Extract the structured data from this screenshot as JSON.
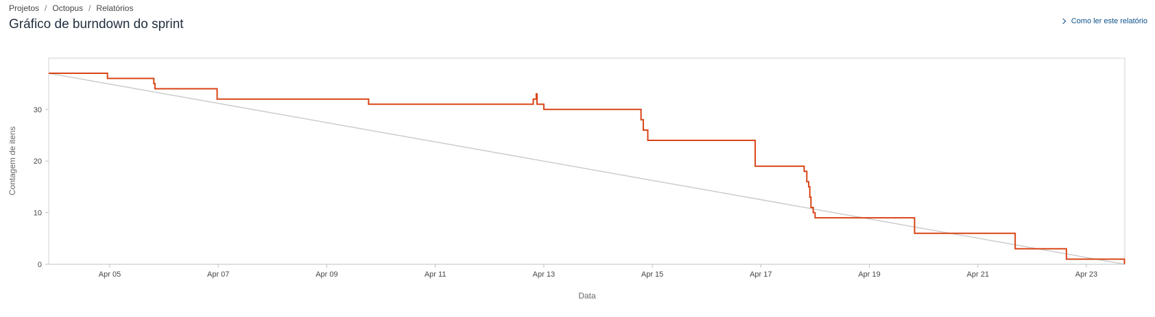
{
  "breadcrumb": {
    "items": [
      "Projetos",
      "Octopus",
      "Relatórios"
    ],
    "separator": "/"
  },
  "page_title": "Gráfico de burndown do sprint",
  "help_link": {
    "label": "Como ler este relatório",
    "icon": "chevron-right-icon"
  },
  "colors": {
    "actual_line": "#d84315",
    "ideal_line": "#cccccc",
    "link": "#0b4f8a"
  },
  "chart_data": {
    "type": "line",
    "xlabel": "Data",
    "ylabel": "Contagem de itens",
    "x_ticks": [
      "Apr 05",
      "Apr 07",
      "Apr 09",
      "Apr 11",
      "Apr 13",
      "Apr 15",
      "Apr 17",
      "Apr 19",
      "Apr 21",
      "Apr 23"
    ],
    "x_tick_dates": [
      "2024-04-05",
      "2024-04-07",
      "2024-04-09",
      "2024-04-11",
      "2024-04-13",
      "2024-04-15",
      "2024-04-17",
      "2024-04-19",
      "2024-04-21",
      "2024-04-23"
    ],
    "y_ticks": [
      0,
      10,
      20,
      30
    ],
    "xlim": [
      "2024-04-03 21:00",
      "2024-04-23 17:00"
    ],
    "ylim": [
      0,
      40
    ],
    "grid": false,
    "series": [
      {
        "style": "step",
        "x": [
          "2024-04-03 21:00",
          "2024-04-04 23:00",
          "2024-04-05 19:30",
          "2024-04-05 20:00",
          "2024-04-06 23:30",
          "2024-04-09 18:30",
          "2024-04-12 19:20",
          "2024-04-12 20:40",
          "2024-04-12 21:00",
          "2024-04-13 00:00",
          "2024-04-14 19:00",
          "2024-04-14 20:00",
          "2024-04-14 22:00",
          "2024-04-16 21:30",
          "2024-04-17 19:10",
          "2024-04-17 20:20",
          "2024-04-17 21:10",
          "2024-04-17 21:40",
          "2024-04-17 22:10",
          "2024-04-17 22:40",
          "2024-04-17 23:10",
          "2024-04-18 00:00",
          "2024-04-19 20:00",
          "2024-04-21 16:30",
          "2024-04-22 15:10",
          "2024-04-23 16:50"
        ],
        "values": [
          37,
          36,
          35,
          34,
          32,
          31,
          32,
          33,
          31,
          30,
          28,
          26,
          24,
          19,
          18,
          16,
          15,
          13,
          11,
          11,
          10,
          9,
          6,
          3,
          1,
          0
        ]
      },
      {
        "style": "line",
        "x": [
          "2024-04-03 21:00",
          "2024-04-23 17:00"
        ],
        "values": [
          37,
          0
        ]
      }
    ]
  }
}
